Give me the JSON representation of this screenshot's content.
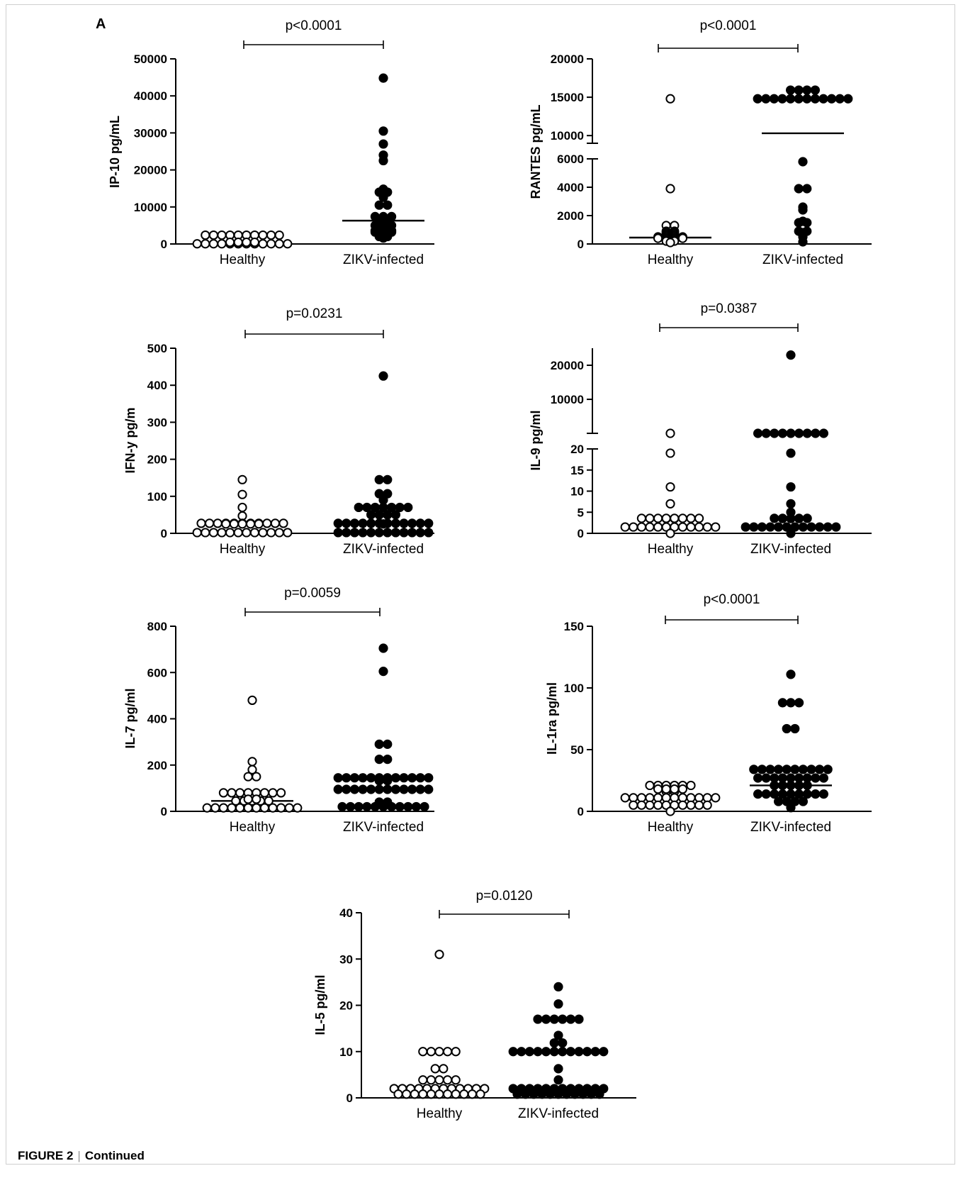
{
  "panel_label": "A",
  "caption": {
    "label": "FIGURE 2",
    "separator": "|",
    "text": "Continued"
  },
  "chart_data": [
    {
      "type": "scatter",
      "ylabel": "IP-10  pg/mL",
      "categories": [
        "Healthy",
        "ZIKV-infected"
      ],
      "ylim": [
        0,
        50000
      ],
      "yticks": [
        "0",
        "10000",
        "20000",
        "30000",
        "40000",
        "50000"
      ],
      "pvalue": "p<0.0001",
      "series": [
        {
          "name": "Healthy",
          "fill": "#ffffff",
          "median": 150,
          "values": [
            50,
            80,
            120,
            150,
            180,
            200,
            250,
            300,
            350,
            400,
            450,
            500,
            550,
            600,
            200,
            150,
            100,
            80,
            300,
            250,
            180,
            120,
            400,
            100,
            60,
            90
          ]
        },
        {
          "name": "ZIKV-infected",
          "fill": "#000000",
          "median": 6300,
          "values": [
            44800,
            30500,
            27000,
            24000,
            22500,
            14800,
            14000,
            13700,
            13500,
            13000,
            12600,
            10500,
            10200,
            7400,
            7300,
            7100,
            6800,
            5400,
            5200,
            5000,
            4900,
            4700,
            4500,
            4400,
            4100,
            3600,
            3500,
            3300,
            3200,
            3000,
            2900,
            2600,
            2000,
            1800,
            1600
          ]
        }
      ]
    },
    {
      "type": "scatter",
      "ylabel": "RANTES  pg/mL",
      "categories": [
        "Healthy",
        "ZIKV-infected"
      ],
      "ylim": [
        0,
        20000
      ],
      "y_axis_break": [
        6000,
        9000
      ],
      "yticks": [
        "0",
        "2000",
        "4000",
        "6000",
        "10000",
        "15000",
        "20000"
      ],
      "pvalue": "p<0.0001",
      "series": [
        {
          "name": "Healthy",
          "fill": "#ffffff",
          "median": 450,
          "values": [
            14800,
            3900,
            1300,
            1250,
            900,
            850,
            800,
            750,
            700,
            650,
            600,
            550,
            500,
            480,
            450,
            420,
            400,
            380,
            350,
            320,
            300,
            250,
            200,
            150,
            100
          ]
        },
        {
          "name": "ZIKV-infected",
          "fill": "#000000",
          "median": 10300,
          "values": [
            14800,
            14800,
            14800,
            14800,
            14800,
            14800,
            14800,
            14800,
            14800,
            14800,
            14800,
            14800,
            14800,
            14800,
            14800,
            14800,
            5800,
            3900,
            3900,
            2600,
            2400,
            1600,
            1500,
            1500,
            900,
            850,
            800,
            700,
            600,
            500,
            150
          ]
        }
      ]
    },
    {
      "type": "scatter",
      "ylabel": "IFN-y  pg/m",
      "categories": [
        "Healthy",
        "ZIKV-infected"
      ],
      "ylim": [
        0,
        500
      ],
      "yticks": [
        "0",
        "100",
        "200",
        "300",
        "400",
        "500"
      ],
      "pvalue": "p=0.0231",
      "series": [
        {
          "name": "Healthy",
          "fill": "#ffffff",
          "median": 2,
          "values": [
            145,
            105,
            70,
            47,
            27,
            27,
            27,
            27,
            27,
            27,
            27,
            27,
            27,
            27,
            27,
            2,
            2,
            2,
            2,
            2,
            2,
            2,
            2,
            2,
            2,
            2,
            2,
            2,
            2,
            2,
            2,
            2
          ]
        },
        {
          "name": "ZIKV-infected",
          "fill": "#000000",
          "median": 27,
          "values": [
            425,
            145,
            145,
            107,
            107,
            90,
            70,
            70,
            70,
            70,
            70,
            70,
            70,
            50,
            50,
            27,
            27,
            27,
            27,
            27,
            27,
            27,
            27,
            27,
            27,
            27,
            27,
            27,
            27,
            27,
            27,
            2,
            2,
            2,
            2,
            2,
            2,
            2,
            2,
            2,
            2,
            2,
            2,
            2
          ]
        }
      ]
    },
    {
      "type": "scatter",
      "ylabel": "IL-9  pg/ml",
      "categories": [
        "Healthy",
        "ZIKV-infected"
      ],
      "ylim": [
        0,
        25000
      ],
      "y_axis_break": [
        20,
        24
      ],
      "yticks": [
        "0",
        "5",
        "10",
        "15",
        "20",
        "10000",
        "20000"
      ],
      "pvalue": "p=0.0387",
      "series": [
        {
          "name": "Healthy",
          "fill": "#ffffff",
          "median": 1.5,
          "values": [
            24,
            19,
            11,
            7,
            3.5,
            3.5,
            1.5,
            1.5,
            1.5,
            1.5,
            1.5,
            1.5,
            1.5,
            1.5,
            1.5,
            1.5,
            1.5,
            1.5,
            1.5,
            1.5,
            1.5,
            1.5,
            1.5,
            1.5,
            1.5,
            1.5,
            0
          ]
        },
        {
          "name": "ZIKV-infected",
          "fill": "#000000",
          "median": 1.5,
          "values": [
            23000,
            24,
            24,
            24,
            24,
            24,
            24,
            24,
            24,
            24,
            19,
            11,
            7,
            5,
            3.5,
            3.5,
            3.5,
            1.5,
            1.5,
            1.5,
            1.5,
            1.5,
            1.5,
            1.5,
            1.5,
            1.5,
            1.5,
            1.5,
            1.5,
            1.5,
            1.5,
            1.5,
            1.5,
            1.5,
            0
          ]
        }
      ]
    },
    {
      "type": "scatter",
      "ylabel": "IL-7 pg/ml",
      "categories": [
        "Healthy",
        "ZIKV-infected"
      ],
      "ylim": [
        0,
        800
      ],
      "yticks": [
        "0",
        "200",
        "400",
        "600",
        "800"
      ],
      "pvalue": "p=0.0059",
      "series": [
        {
          "name": "Healthy",
          "fill": "#ffffff",
          "median": 45,
          "values": [
            480,
            215,
            180,
            150,
            150,
            80,
            80,
            80,
            80,
            80,
            80,
            80,
            80,
            45,
            45,
            45,
            45,
            45,
            15,
            15,
            15,
            15,
            15,
            15,
            15,
            15,
            15,
            15,
            15,
            15,
            15,
            15
          ]
        },
        {
          "name": "ZIKV-infected",
          "fill": "#000000",
          "median": 95,
          "values": [
            705,
            605,
            290,
            290,
            225,
            225,
            145,
            145,
            145,
            145,
            145,
            145,
            145,
            145,
            145,
            145,
            145,
            145,
            95,
            95,
            95,
            95,
            95,
            95,
            95,
            95,
            95,
            95,
            95,
            95,
            95,
            95,
            40,
            40,
            30,
            20,
            20,
            20,
            20,
            20,
            20,
            20,
            20,
            20,
            20,
            15
          ]
        }
      ]
    },
    {
      "type": "scatter",
      "ylabel": "IL-1ra  pg/ml",
      "categories": [
        "Healthy",
        "ZIKV-infected"
      ],
      "ylim": [
        0,
        150
      ],
      "yticks": [
        "0",
        "50",
        "100",
        "150"
      ],
      "pvalue": "p<0.0001",
      "series": [
        {
          "name": "Healthy",
          "fill": "#ffffff",
          "median": 11,
          "values": [
            21,
            21,
            21,
            21,
            21,
            21,
            16,
            16,
            11,
            11,
            11,
            11,
            11,
            11,
            11,
            11,
            11,
            11,
            11,
            11,
            11,
            11,
            11,
            11,
            5,
            5,
            5,
            5,
            5,
            5,
            5,
            5,
            5,
            5,
            0
          ]
        },
        {
          "name": "ZIKV-infected",
          "fill": "#000000",
          "median": 21,
          "values": [
            111,
            88,
            88,
            88,
            67,
            67,
            34,
            34,
            34,
            34,
            34,
            34,
            34,
            34,
            34,
            34,
            27,
            27,
            27,
            27,
            27,
            27,
            27,
            27,
            27,
            21,
            21,
            21,
            21,
            21,
            14,
            14,
            14,
            14,
            14,
            14,
            14,
            14,
            14,
            8,
            8,
            8,
            8,
            3
          ]
        }
      ]
    },
    {
      "type": "scatter",
      "ylabel": "IL-5  pg/ml",
      "categories": [
        "Healthy",
        "ZIKV-infected"
      ],
      "ylim": [
        0,
        40
      ],
      "yticks": [
        "0",
        "10",
        "20",
        "30",
        "40"
      ],
      "pvalue": "p=0.0120",
      "series": [
        {
          "name": "Healthy",
          "fill": "#ffffff",
          "median": 2,
          "values": [
            31,
            10,
            10,
            10,
            10,
            10,
            6.3,
            6.3,
            2,
            2,
            2,
            2,
            2,
            2,
            2,
            2,
            2,
            2,
            2,
            2,
            2,
            2,
            2,
            2,
            2,
            0.8,
            0.8,
            0.8,
            0.8,
            0.8,
            0.8,
            0.8,
            0.8,
            0.8,
            0.8,
            0.8
          ]
        },
        {
          "name": "ZIKV-infected",
          "fill": "#000000",
          "median": 10,
          "values": [
            24,
            20.3,
            17,
            17,
            17,
            17,
            17,
            17,
            13.5,
            10,
            10,
            10,
            10,
            10,
            10,
            10,
            10,
            10,
            10,
            10,
            10,
            10,
            10,
            6.3,
            2,
            2,
            2,
            2,
            2,
            2,
            2,
            2,
            2,
            2,
            2,
            2,
            2,
            0.8,
            0.8,
            0.8,
            0.8,
            0.8,
            0.8,
            0.8,
            0.8,
            0.8,
            0.8,
            0.8
          ]
        }
      ]
    }
  ]
}
